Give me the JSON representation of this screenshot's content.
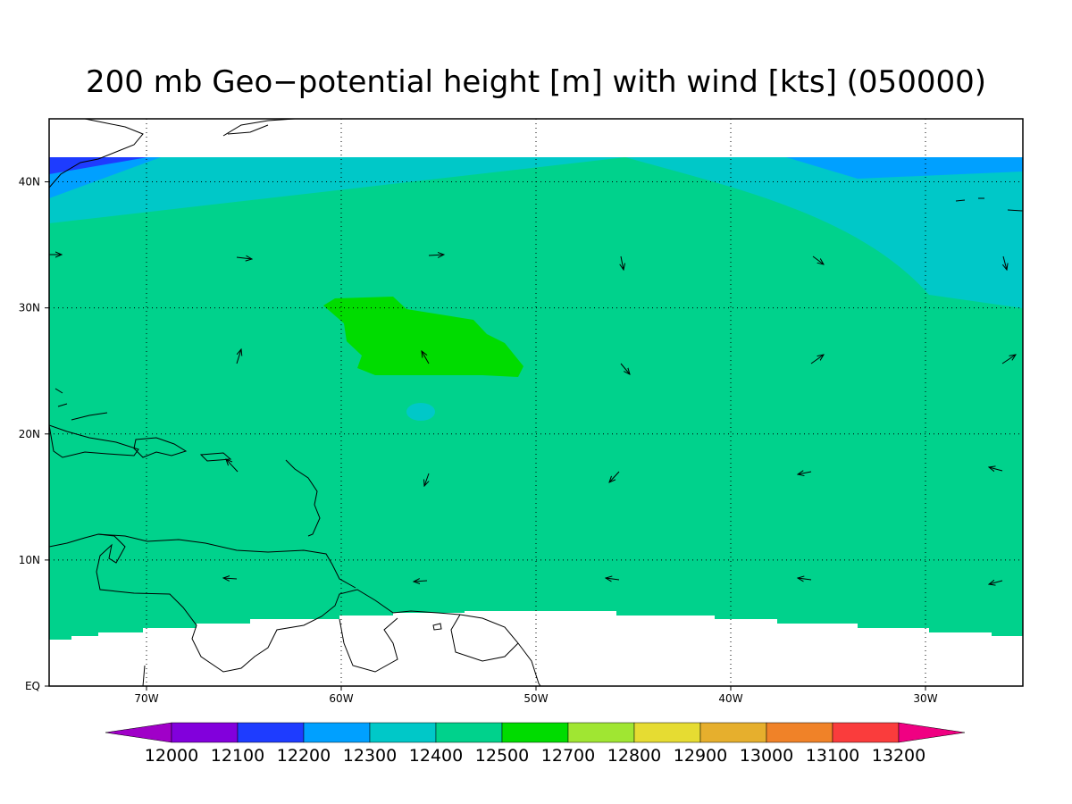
{
  "map": {
    "title": "200 mb Geo−potential height [m] with wind [kts] (050000)",
    "lon_range": [
      -75,
      -25
    ],
    "lat_range": [
      0,
      45
    ],
    "lon_ticks": [
      {
        "value": -70,
        "label": "70W"
      },
      {
        "value": -60,
        "label": "60W"
      },
      {
        "value": -50,
        "label": "50W"
      },
      {
        "value": -40,
        "label": "40W"
      },
      {
        "value": -30,
        "label": "30W"
      }
    ],
    "lat_ticks": [
      {
        "value": 0,
        "label": "EQ"
      },
      {
        "value": 10,
        "label": "10N"
      },
      {
        "value": 20,
        "label": "20N"
      },
      {
        "value": 30,
        "label": "30N"
      },
      {
        "value": 40,
        "label": "40N"
      }
    ],
    "colorbar": {
      "labels": [
        12000,
        12100,
        12200,
        12300,
        12400,
        12500,
        12700,
        12800,
        12900,
        13000,
        13100,
        13200
      ],
      "colors": [
        "#a000c8",
        "#8200dc",
        "#1e3cff",
        "#00a0ff",
        "#00c8c8",
        "#00d28c",
        "#00dc00",
        "#a0e632",
        "#e6dc32",
        "#e6af2d",
        "#f08228",
        "#fa3c3c",
        "#f00082"
      ]
    }
  }
}
